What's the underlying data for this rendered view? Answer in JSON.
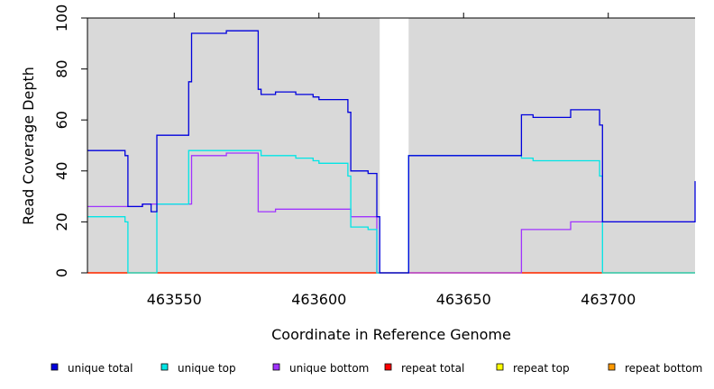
{
  "chart_data": {
    "type": "line",
    "xlabel": "Coordinate in Reference Genome",
    "ylabel": "Read Coverage Depth",
    "xlim": [
      463520,
      463730
    ],
    "ylim": [
      0,
      100
    ],
    "x_ticks": [
      463550,
      463600,
      463650,
      463700
    ],
    "y_ticks": [
      0,
      20,
      40,
      60,
      80,
      100
    ],
    "grid": false,
    "background": "#d9d9d9",
    "gap": {
      "from": 463621,
      "to": 463631
    },
    "legend_position": "bottom",
    "series": [
      {
        "name": "unique total",
        "color": "#0000dd",
        "points": [
          [
            463520,
            48
          ],
          [
            463533,
            46
          ],
          [
            463534,
            26
          ],
          [
            463539,
            27
          ],
          [
            463542,
            24
          ],
          [
            463544,
            54
          ],
          [
            463555,
            75
          ],
          [
            463556,
            94
          ],
          [
            463568,
            95
          ],
          [
            463579,
            72
          ],
          [
            463580,
            70
          ],
          [
            463585,
            71
          ],
          [
            463592,
            70
          ],
          [
            463598,
            69
          ],
          [
            463600,
            68
          ],
          [
            463610,
            63
          ],
          [
            463611,
            40
          ],
          [
            463617,
            39
          ],
          [
            463620,
            22
          ],
          [
            463621,
            0
          ],
          [
            463631,
            46
          ],
          [
            463670,
            62
          ],
          [
            463674,
            61
          ],
          [
            463687,
            64
          ],
          [
            463697,
            58
          ],
          [
            463698,
            20
          ],
          [
            463730,
            36
          ]
        ]
      },
      {
        "name": "unique top",
        "color": "#00e5e5",
        "points": [
          [
            463520,
            22
          ],
          [
            463533,
            20
          ],
          [
            463534,
            0
          ],
          [
            463544,
            27
          ],
          [
            463555,
            48
          ],
          [
            463580,
            46
          ],
          [
            463592,
            45
          ],
          [
            463598,
            44
          ],
          [
            463600,
            43
          ],
          [
            463610,
            38
          ],
          [
            463611,
            18
          ],
          [
            463617,
            17
          ],
          [
            463620,
            0
          ],
          [
            463631,
            46
          ],
          [
            463670,
            45
          ],
          [
            463674,
            44
          ],
          [
            463697,
            38
          ],
          [
            463698,
            0
          ],
          [
            463730,
            0
          ]
        ]
      },
      {
        "name": "unique bottom",
        "color": "#a033ff",
        "points": [
          [
            463520,
            26
          ],
          [
            463534,
            26
          ],
          [
            463539,
            27
          ],
          [
            463544,
            27
          ],
          [
            463556,
            46
          ],
          [
            463568,
            47
          ],
          [
            463579,
            24
          ],
          [
            463585,
            25
          ],
          [
            463611,
            22
          ],
          [
            463620,
            0
          ],
          [
            463670,
            17
          ],
          [
            463687,
            20
          ],
          [
            463698,
            20
          ],
          [
            463730,
            20
          ]
        ]
      },
      {
        "name": "repeat total",
        "color": "#ff0000",
        "points": [
          [
            463520,
            0
          ],
          [
            463730,
            0
          ]
        ]
      },
      {
        "name": "repeat top",
        "color": "#ffff00",
        "points": [
          [
            463520,
            0
          ],
          [
            463730,
            0
          ]
        ]
      },
      {
        "name": "repeat bottom",
        "color": "#ff9900",
        "points": [
          [
            463520,
            0
          ],
          [
            463730,
            0
          ]
        ]
      }
    ]
  }
}
